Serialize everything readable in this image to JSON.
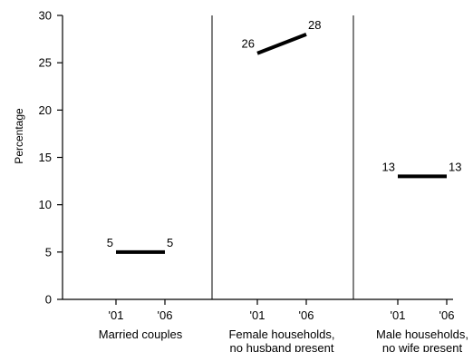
{
  "chart_data": {
    "type": "line",
    "ylabel": "Percentage",
    "ylim": [
      0,
      30
    ],
    "yticks": [
      0,
      5,
      10,
      15,
      20,
      25,
      30
    ],
    "x_tick_labels": [
      "'01",
      "'06"
    ],
    "panels": [
      {
        "category": "Married couples",
        "values": [
          5,
          5
        ],
        "labels": [
          "5",
          "5"
        ]
      },
      {
        "category": "Female households, no husband present",
        "values": [
          26,
          28
        ],
        "labels": [
          "26",
          "28"
        ]
      },
      {
        "category": "Male households, no wife present",
        "values": [
          13,
          13
        ],
        "labels": [
          "13",
          "13"
        ]
      }
    ],
    "colors": {
      "line": "#000000",
      "axis": "#000000"
    }
  }
}
